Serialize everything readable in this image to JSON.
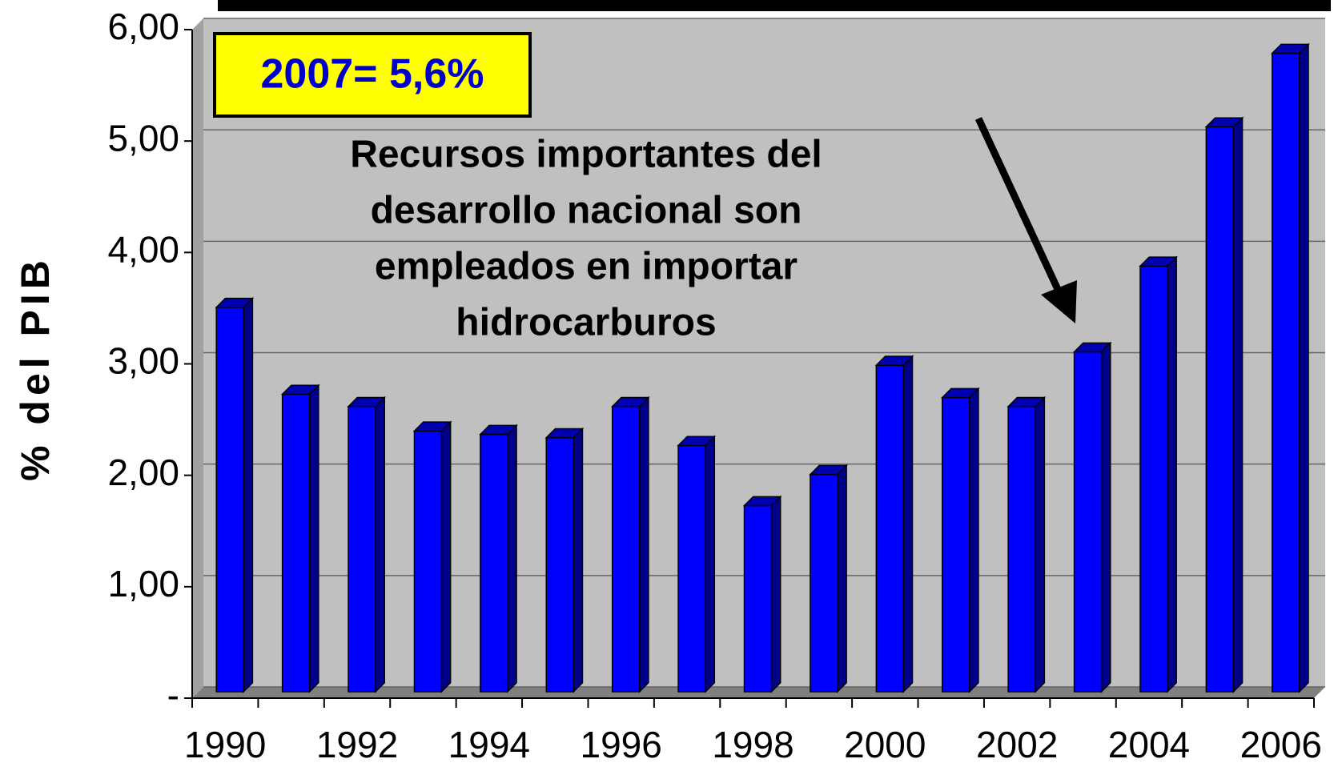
{
  "chart_data": {
    "type": "bar",
    "y_label": "% del PIB",
    "annotations": [
      "2007= 5,6%",
      [
        "Recursos importantes del",
        "desarrollo nacional son",
        "empleados en importar",
        "hidrocarburos"
      ]
    ],
    "categories": [
      "1990",
      null,
      "1992",
      null,
      "1994",
      null,
      "1996",
      null,
      "1998",
      null,
      "2000",
      null,
      "2002",
      null,
      "2004",
      null,
      "2006"
    ],
    "values": [
      3.45,
      2.67,
      2.56,
      2.34,
      2.31,
      2.28,
      2.56,
      2.21,
      1.67,
      1.95,
      2.93,
      2.64,
      2.56,
      3.05,
      3.82,
      5.07,
      5.73
    ],
    "color": "#0000ff",
    "ylim": [
      0,
      6
    ],
    "yticks": [
      {
        "value": 0,
        "label": "-"
      },
      {
        "value": 1,
        "label": "1,00"
      },
      {
        "value": 2,
        "label": "2,00"
      },
      {
        "value": 3,
        "label": "3,00"
      },
      {
        "value": 4,
        "label": "4,00"
      },
      {
        "value": 5,
        "label": "5,00"
      },
      {
        "value": 6,
        "label": "6,00"
      }
    ],
    "grid": true
  }
}
